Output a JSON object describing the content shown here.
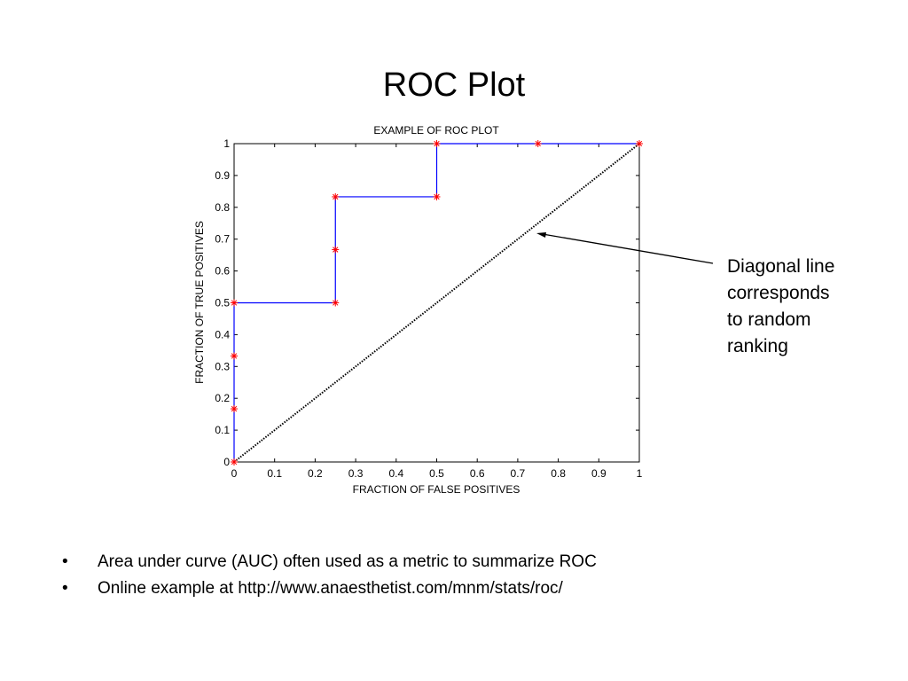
{
  "slide": {
    "title": "ROC Plot",
    "annotation_lines": [
      "Diagonal line",
      "corresponds",
      "to random",
      "ranking"
    ],
    "bullet_symbol": "•",
    "bullets": [
      "Area under curve (AUC) often used as a metric to summarize ROC",
      "Online example at http://www.anaesthetist.com/mnm/stats/roc/"
    ]
  },
  "chart_data": {
    "type": "line",
    "title": "EXAMPLE OF ROC PLOT",
    "xlabel": "FRACTION OF FALSE POSITIVES",
    "ylabel": "FRACTION OF TRUE POSITIVES",
    "xlim": [
      0,
      1
    ],
    "ylim": [
      0,
      1
    ],
    "xticks": [
      "0",
      "0.1",
      "0.2",
      "0.3",
      "0.4",
      "0.5",
      "0.6",
      "0.7",
      "0.8",
      "0.9",
      "1"
    ],
    "yticks": [
      "0",
      "0.1",
      "0.2",
      "0.3",
      "0.4",
      "0.5",
      "0.6",
      "0.7",
      "0.8",
      "0.9",
      "1"
    ],
    "grid": false,
    "series": [
      {
        "style": "staircase with star markers",
        "color": "#0000ff",
        "marker_color": "#ff0000",
        "points": [
          {
            "x": 0,
            "y": 0
          },
          {
            "x": 0,
            "y": 0.167
          },
          {
            "x": 0,
            "y": 0.333
          },
          {
            "x": 0,
            "y": 0.5
          },
          {
            "x": 0.25,
            "y": 0.5
          },
          {
            "x": 0.25,
            "y": 0.667
          },
          {
            "x": 0.25,
            "y": 0.833
          },
          {
            "x": 0.5,
            "y": 0.833
          },
          {
            "x": 0.5,
            "y": 1
          },
          {
            "x": 0.75,
            "y": 1
          },
          {
            "x": 1,
            "y": 1
          }
        ]
      },
      {
        "style": "dotted diagonal",
        "color": "#000000",
        "points": [
          {
            "x": 0,
            "y": 0
          },
          {
            "x": 1,
            "y": 1
          }
        ]
      }
    ]
  }
}
